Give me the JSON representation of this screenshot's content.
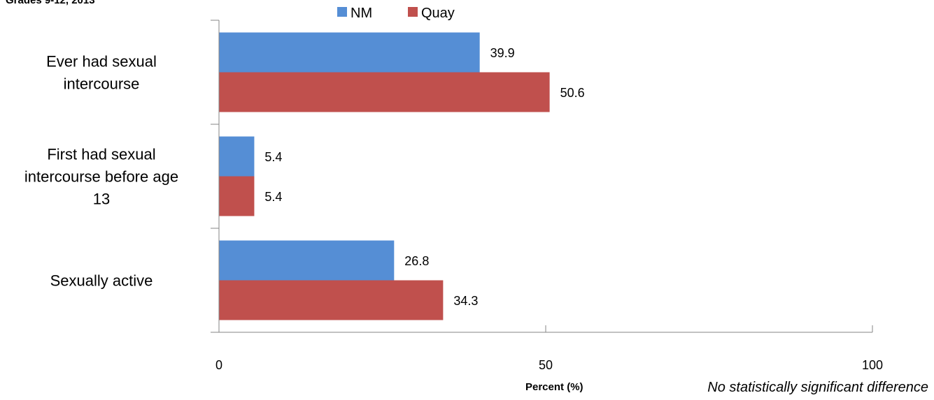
{
  "chart_data": {
    "type": "bar",
    "orientation": "horizontal",
    "title": "Grades 9-12, 2013",
    "xlabel": "Percent (%)",
    "ylabel": "",
    "xlim": [
      0,
      100
    ],
    "xticks": [
      "0",
      "50",
      "100"
    ],
    "categories": [
      [
        "Ever had sexual",
        "intercourse"
      ],
      [
        "First had sexual",
        "intercourse before age",
        "13"
      ],
      [
        "Sexually active"
      ]
    ],
    "series": [
      {
        "name": "NM",
        "color": "#558ED5",
        "values": [
          39.9,
          5.4,
          26.8
        ],
        "labels": [
          "39.9",
          "5.4",
          "26.8"
        ]
      },
      {
        "name": "Quay",
        "color": "#C0504D",
        "values": [
          50.6,
          5.4,
          34.3
        ],
        "labels": [
          "50.6",
          "5.4",
          "34.3"
        ]
      }
    ],
    "legend": "top-center",
    "grid": false,
    "note": "No statistically significant difference"
  }
}
